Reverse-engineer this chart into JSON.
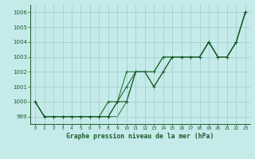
{
  "title": "Graphe pression niveau de la mer (hPa)",
  "background_color": "#c5eaea",
  "grid_color": "#a8cfcf",
  "line_color_1": "#1a5c2a",
  "line_color_2": "#1a6b30",
  "line_color_3": "#237832",
  "line_color_4": "#2d8c45",
  "xlim": [
    -0.5,
    23.5
  ],
  "ylim": [
    998.5,
    1006.5
  ],
  "yticks": [
    999,
    1000,
    1001,
    1002,
    1003,
    1004,
    1005,
    1006
  ],
  "xticks": [
    0,
    1,
    2,
    3,
    4,
    5,
    6,
    7,
    8,
    9,
    10,
    11,
    12,
    13,
    14,
    15,
    16,
    17,
    18,
    19,
    20,
    21,
    22,
    23
  ],
  "series1": [
    1000,
    999,
    999,
    999,
    999,
    999,
    999,
    999,
    999,
    1000,
    1000,
    1002,
    1002,
    1001,
    1002,
    1003,
    1003,
    1003,
    1003,
    1004,
    1003,
    1003,
    1004,
    1006
  ],
  "series2": [
    1000,
    999,
    999,
    999,
    999,
    999,
    999,
    999,
    1000,
    1000,
    1001,
    1002,
    1002,
    1002,
    1003,
    1003,
    1003,
    1003,
    1003,
    1004,
    1003,
    1003,
    1004,
    1006
  ],
  "series3": [
    1000,
    999,
    999,
    999,
    999,
    999,
    999,
    999,
    999,
    1000,
    1002,
    1002,
    1002,
    1002,
    1003,
    1003,
    1003,
    1003,
    1003,
    1004,
    1003,
    1003,
    1004,
    1006
  ],
  "series4": [
    1000,
    999,
    999,
    999,
    999,
    999,
    999,
    999,
    999,
    999,
    1000,
    1002,
    1002,
    1001,
    1002,
    1003,
    1003,
    1003,
    1003,
    1004,
    1003,
    1003,
    1004,
    1006
  ]
}
